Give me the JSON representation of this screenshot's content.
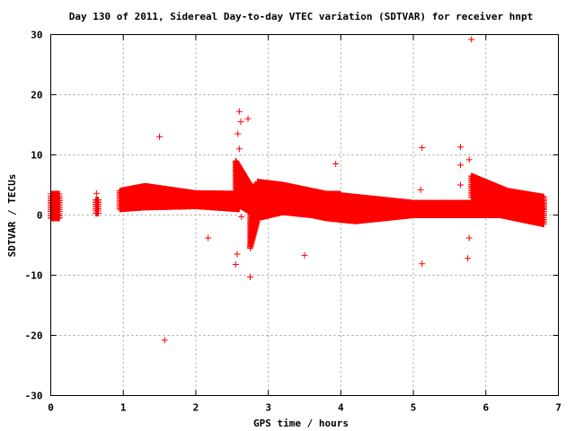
{
  "chart_data": {
    "type": "scatter",
    "title": "Day 130 of 2011, Sidereal Day-to-day VTEC variation (SDTVAR) for receiver hnpt",
    "xlabel": "GPS time / hours",
    "ylabel": "SDTVAR / TECUs",
    "xlim": [
      0,
      7
    ],
    "ylim": [
      -30,
      30
    ],
    "xticks": [
      0,
      1,
      2,
      3,
      4,
      5,
      6,
      7
    ],
    "yticks": [
      -30,
      -20,
      -10,
      0,
      10,
      20,
      30
    ],
    "grid": true,
    "marker": "plus",
    "color": "#ff0000",
    "bands": [
      {
        "x": [
          0.0,
          0.12
        ],
        "lo": [
          -0.5,
          -0.5
        ],
        "hi": [
          3.5,
          3.5
        ]
      },
      {
        "x": [
          0.62,
          0.66
        ],
        "lo": [
          0.3,
          0.3
        ],
        "hi": [
          2.5,
          2.5
        ]
      },
      {
        "x": [
          0.95,
          1.3,
          2.0,
          2.6
        ],
        "lo": [
          1.0,
          1.3,
          1.5,
          1.0
        ],
        "hi": [
          4.0,
          4.8,
          3.6,
          3.5
        ]
      },
      {
        "x": [
          2.55,
          2.75
        ],
        "lo": [
          2.0,
          0.5
        ],
        "hi": [
          9.0,
          5.0
        ]
      },
      {
        "x": [
          2.75,
          2.85
        ],
        "lo": [
          -5.5,
          -1.0
        ],
        "hi": [
          4.5,
          5.0
        ]
      },
      {
        "x": [
          2.85,
          3.2,
          3.6,
          3.8,
          4.0
        ],
        "lo": [
          -0.5,
          0.5,
          0.0,
          -0.5,
          0.0
        ],
        "hi": [
          5.5,
          5.0,
          4.0,
          3.5,
          3.5
        ]
      },
      {
        "x": [
          3.8,
          4.2,
          4.6,
          5.0,
          5.4,
          5.8,
          6.2,
          6.8
        ],
        "lo": [
          -0.5,
          -1.0,
          -0.5,
          0.0,
          0.0,
          0.0,
          0.0,
          -1.5
        ],
        "hi": [
          3.5,
          3.0,
          2.5,
          2.0,
          2.0,
          2.0,
          3.0,
          3.0
        ]
      },
      {
        "x": [
          5.8,
          6.0,
          6.3,
          6.8
        ],
        "lo": [
          3.0,
          2.5,
          1.5,
          1.0
        ],
        "hi": [
          6.5,
          5.5,
          4.0,
          3.0
        ]
      }
    ],
    "points": [
      {
        "x": 1.5,
        "y": 13.0
      },
      {
        "x": 1.57,
        "y": -20.8
      },
      {
        "x": 2.17,
        "y": -3.8
      },
      {
        "x": 2.55,
        "y": -8.2
      },
      {
        "x": 2.57,
        "y": -6.5
      },
      {
        "x": 2.58,
        "y": 13.5
      },
      {
        "x": 2.6,
        "y": 17.2
      },
      {
        "x": 2.62,
        "y": 15.5
      },
      {
        "x": 2.72,
        "y": 16.0
      },
      {
        "x": 2.6,
        "y": 11.0
      },
      {
        "x": 2.63,
        "y": -0.3
      },
      {
        "x": 2.75,
        "y": -10.3
      },
      {
        "x": 2.75,
        "y": -5.3
      },
      {
        "x": 3.5,
        "y": -6.7
      },
      {
        "x": 3.93,
        "y": 8.5
      },
      {
        "x": 5.12,
        "y": 11.2
      },
      {
        "x": 5.1,
        "y": 4.2
      },
      {
        "x": 5.12,
        "y": -8.1
      },
      {
        "x": 5.65,
        "y": 11.3
      },
      {
        "x": 5.65,
        "y": 8.3
      },
      {
        "x": 5.65,
        "y": 5.0
      },
      {
        "x": 5.77,
        "y": 9.2
      },
      {
        "x": 5.77,
        "y": -3.8
      },
      {
        "x": 5.75,
        "y": -7.2
      },
      {
        "x": 5.8,
        "y": 29.2
      },
      {
        "x": 0.63,
        "y": 3.6
      },
      {
        "x": 2.65,
        "y": 7.0
      },
      {
        "x": 2.95,
        "y": 5.2
      }
    ]
  }
}
